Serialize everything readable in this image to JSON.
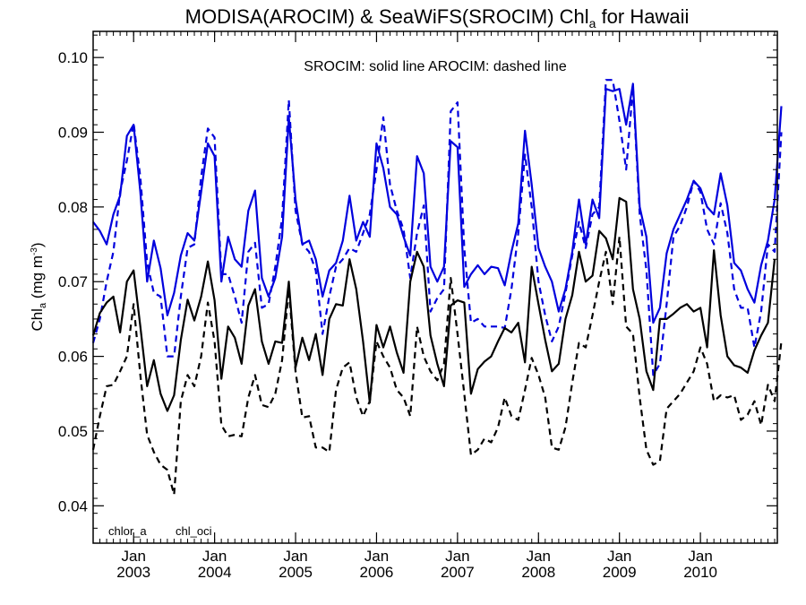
{
  "colors": {
    "chlor_a": "#000000",
    "chl_oci": "#0000dd",
    "axis": "#000000",
    "background": "#ffffff"
  },
  "chart_data": {
    "type": "line",
    "title_main": "MODISA(AROCIM) & SeaWiFS(SROCIM)  Chl",
    "title_sub": "a",
    "title_tail": " for Hawaii",
    "ylabel_main": "Chl",
    "ylabel_sub": "a",
    "ylabel_unit": " (mg m",
    "ylabel_sup": "-3",
    "ylabel_close": ")",
    "annotation": "SROCIM: solid line   AROCIM: dashed line",
    "legend": [
      {
        "label": "chlor_a",
        "color": "#000000"
      },
      {
        "label": "chl_oci",
        "color": "#0000dd"
      }
    ],
    "legend_position": "bottom-left",
    "ylim": [
      0.035,
      0.1035
    ],
    "xlim": [
      2002.5,
      2010.95
    ],
    "yticks": [
      "0.04",
      "0.05",
      "0.06",
      "0.07",
      "0.08",
      "0.09",
      "0.10"
    ],
    "xticks": [
      {
        "month": "Jan",
        "year": "2003"
      },
      {
        "month": "Jan",
        "year": "2004"
      },
      {
        "month": "Jan",
        "year": "2005"
      },
      {
        "month": "Jan",
        "year": "2006"
      },
      {
        "month": "Jan",
        "year": "2007"
      },
      {
        "month": "Jan",
        "year": "2008"
      },
      {
        "month": "Jan",
        "year": "2009"
      },
      {
        "month": "Jan",
        "year": "2010"
      }
    ],
    "x_start": "2002-07",
    "x_step_months": 1,
    "series": [
      {
        "name": "chl_oci",
        "color": "#0000dd",
        "dash": false,
        "values": [
          0.078,
          0.0768,
          0.075,
          0.079,
          0.0815,
          0.0895,
          0.091,
          0.082,
          0.07,
          0.0755,
          0.0718,
          0.0655,
          0.0685,
          0.0735,
          0.0765,
          0.0755,
          0.082,
          0.0885,
          0.0868,
          0.07,
          0.076,
          0.073,
          0.072,
          0.0795,
          0.0822,
          0.0705,
          0.068,
          0.0705,
          0.076,
          0.092,
          0.081,
          0.075,
          0.0755,
          0.073,
          0.068,
          0.0715,
          0.0725,
          0.0755,
          0.0815,
          0.0755,
          0.078,
          0.076,
          0.0885,
          0.0852,
          0.08,
          0.079,
          0.076,
          0.0735,
          0.0868,
          0.0845,
          0.072,
          0.07,
          0.072,
          0.0888,
          0.088,
          0.0693,
          0.071,
          0.0722,
          0.071,
          0.072,
          0.0718,
          0.0695,
          0.074,
          0.0778,
          0.0902,
          0.083,
          0.0745,
          0.072,
          0.07,
          0.066,
          0.069,
          0.074,
          0.081,
          0.075,
          0.081,
          0.0785,
          0.0958,
          0.0955,
          0.0958,
          0.091,
          0.0965,
          0.08,
          0.076,
          0.0645,
          0.0665,
          0.0738,
          0.077,
          0.079,
          0.081,
          0.0835,
          0.0825,
          0.08,
          0.079,
          0.0845,
          0.0802,
          0.0725,
          0.0715,
          0.069,
          0.0672,
          0.0722,
          0.0755,
          0.081,
          0.0935
        ]
      },
      {
        "name": "chl_oci",
        "color": "#0000dd",
        "dash": true,
        "values": [
          0.0618,
          0.065,
          0.07,
          0.074,
          0.082,
          0.0862,
          0.0912,
          0.084,
          0.0725,
          0.0685,
          0.068,
          0.06,
          0.06,
          0.068,
          0.0745,
          0.075,
          0.084,
          0.0905,
          0.0893,
          0.071,
          0.071,
          0.068,
          0.0645,
          0.074,
          0.0752,
          0.0665,
          0.067,
          0.072,
          0.0785,
          0.0943,
          0.0795,
          0.075,
          0.074,
          0.0715,
          0.063,
          0.068,
          0.072,
          0.073,
          0.0745,
          0.074,
          0.0765,
          0.079,
          0.085,
          0.092,
          0.083,
          0.0795,
          0.077,
          0.0705,
          0.0765,
          0.0802,
          0.066,
          0.0678,
          0.069,
          0.0928,
          0.094,
          0.0745,
          0.0645,
          0.065,
          0.064,
          0.064,
          0.064,
          0.0638,
          0.069,
          0.0765,
          0.087,
          0.08,
          0.07,
          0.0655,
          0.062,
          0.064,
          0.0685,
          0.0735,
          0.078,
          0.0745,
          0.079,
          0.08,
          0.097,
          0.097,
          0.0915,
          0.085,
          0.096,
          0.079,
          0.0715,
          0.0575,
          0.059,
          0.067,
          0.076,
          0.0775,
          0.08,
          0.0835,
          0.082,
          0.077,
          0.075,
          0.0805,
          0.0765,
          0.069,
          0.0665,
          0.0665,
          0.0612,
          0.066,
          0.075,
          0.074,
          0.09
        ]
      },
      {
        "name": "chlor_a",
        "color": "#000000",
        "dash": false,
        "values": [
          0.0628,
          0.0658,
          0.0672,
          0.068,
          0.0632,
          0.07,
          0.0715,
          0.064,
          0.056,
          0.0595,
          0.055,
          0.0527,
          0.0548,
          0.0622,
          0.0676,
          0.0648,
          0.068,
          0.0727,
          0.0675,
          0.057,
          0.064,
          0.0625,
          0.059,
          0.0668,
          0.069,
          0.062,
          0.059,
          0.062,
          0.0618,
          0.07,
          0.0585,
          0.0625,
          0.0595,
          0.063,
          0.0575,
          0.065,
          0.067,
          0.0668,
          0.073,
          0.069,
          0.062,
          0.0538,
          0.0642,
          0.0612,
          0.064,
          0.0605,
          0.0578,
          0.07,
          0.074,
          0.072,
          0.0628,
          0.059,
          0.056,
          0.0668,
          0.0675,
          0.0672,
          0.055,
          0.0583,
          0.0593,
          0.06,
          0.062,
          0.0638,
          0.0632,
          0.0645,
          0.0592,
          0.072,
          0.067,
          0.0622,
          0.058,
          0.059,
          0.065,
          0.0682,
          0.074,
          0.07,
          0.0708,
          0.0768,
          0.0758,
          0.073,
          0.0812,
          0.0807,
          0.069,
          0.065,
          0.058,
          0.0555,
          0.065,
          0.065,
          0.0657,
          0.0665,
          0.067,
          0.066,
          0.0665,
          0.0612,
          0.0742,
          0.0655,
          0.06,
          0.0588,
          0.0585,
          0.0578,
          0.0608,
          0.0628,
          0.0645,
          0.073
        ]
      },
      {
        "name": "chlor_a",
        "color": "#000000",
        "dash": true,
        "values": [
          0.0475,
          0.052,
          0.056,
          0.0562,
          0.058,
          0.06,
          0.067,
          0.0575,
          0.0495,
          0.0472,
          0.0455,
          0.0448,
          0.0415,
          0.054,
          0.0575,
          0.056,
          0.06,
          0.0672,
          0.062,
          0.0508,
          0.0493,
          0.0495,
          0.0493,
          0.0545,
          0.0575,
          0.0535,
          0.0532,
          0.055,
          0.0595,
          0.069,
          0.058,
          0.0518,
          0.052,
          0.0478,
          0.0478,
          0.0472,
          0.0555,
          0.0585,
          0.0592,
          0.0545,
          0.052,
          0.054,
          0.062,
          0.06,
          0.0585,
          0.0555,
          0.0545,
          0.052,
          0.064,
          0.06,
          0.058,
          0.0568,
          0.059,
          0.0705,
          0.063,
          0.055,
          0.0468,
          0.0475,
          0.049,
          0.0485,
          0.0505,
          0.0545,
          0.052,
          0.0515,
          0.0555,
          0.0598,
          0.0575,
          0.0545,
          0.0478,
          0.0475,
          0.0505,
          0.0565,
          0.0618,
          0.0612,
          0.0655,
          0.07,
          0.074,
          0.067,
          0.076,
          0.064,
          0.063,
          0.0545,
          0.0475,
          0.0455,
          0.046,
          0.053,
          0.054,
          0.055,
          0.0565,
          0.058,
          0.0612,
          0.059,
          0.054,
          0.0548,
          0.0545,
          0.0548,
          0.0515,
          0.0522,
          0.054,
          0.0508,
          0.0562,
          0.054,
          0.062
        ]
      }
    ]
  }
}
